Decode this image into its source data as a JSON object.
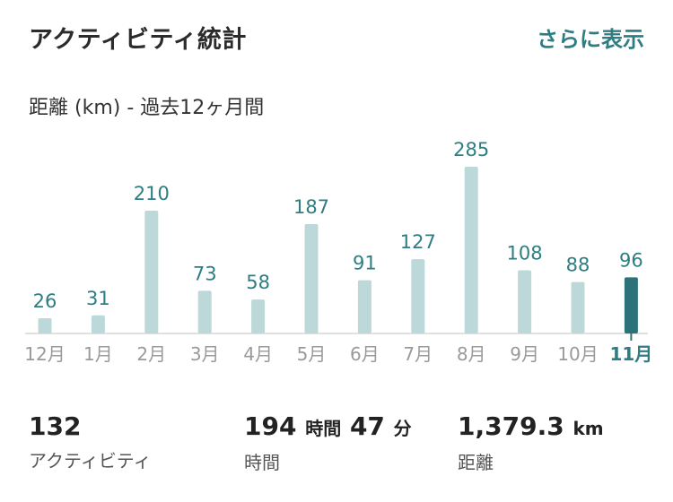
{
  "header": {
    "title": "アクティビティ統計",
    "show_more": "さらに表示"
  },
  "chart_title": "距離 (km) - 過去12ヶ月間",
  "colors": {
    "accent": "#2e7d82",
    "bar": "#bcd8d9",
    "bar_selected": "#2c7379",
    "muted": "#9a9a9a",
    "axis": "#d6d6d6"
  },
  "chart_data": {
    "type": "bar",
    "title": "距離 (km) - 過去12ヶ月間",
    "ylabel": "",
    "xlabel": "",
    "categories": [
      "12月",
      "1月",
      "2月",
      "3月",
      "4月",
      "5月",
      "6月",
      "7月",
      "8月",
      "9月",
      "10月",
      "11月"
    ],
    "values": [
      26,
      31,
      210,
      73,
      58,
      187,
      91,
      127,
      285,
      108,
      88,
      96
    ],
    "selected_index": 11,
    "ylim": [
      0,
      285
    ],
    "grid": false
  },
  "stats": [
    {
      "value": "132",
      "unit": "",
      "label": "アクティビティ"
    },
    {
      "value": "194",
      "unit": "時間",
      "value2": "47",
      "unit2": "分",
      "label": "時間"
    },
    {
      "value": "1,379.3",
      "unit": "km",
      "label": "距離"
    }
  ]
}
